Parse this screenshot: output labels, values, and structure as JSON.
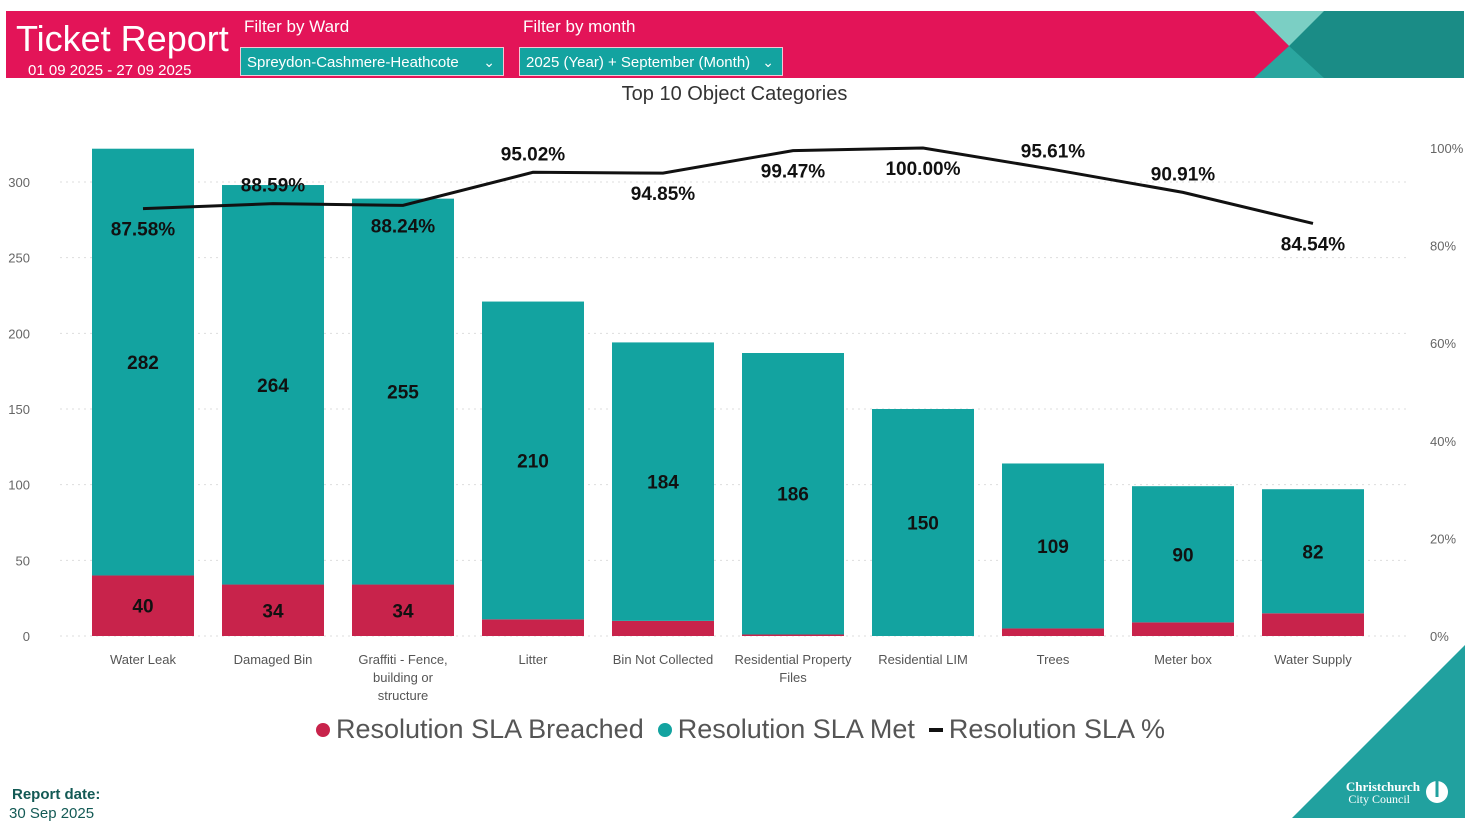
{
  "header": {
    "title": "Ticket Report",
    "date_range": "01 09 2025 - 27 09 2025",
    "ward_filter_label": "Filter by Ward",
    "ward_filter_value": "Spreydon-Cashmere-Heathcote",
    "month_filter_label": "Filter by month",
    "month_filter_value": "2025 (Year) + September (Month)",
    "chevron_icon": "chevron-down-icon"
  },
  "colors": {
    "brand_pink": "#e31458",
    "teal": "#13a3a0",
    "breached": "#c8234b",
    "line": "#111111"
  },
  "chart_data": {
    "type": "bar",
    "stacked": true,
    "title": "Top 10 Object Categories",
    "categories": [
      "Water Leak",
      "Damaged Bin",
      "Graffiti - Fence, building or structure",
      "Litter",
      "Bin Not Collected",
      "Residential Property Files",
      "Residential LIM",
      "Trees",
      "Meter box",
      "Water Supply"
    ],
    "series": [
      {
        "name": "Resolution SLA Breached",
        "type": "bar",
        "axis": "left",
        "values": [
          40,
          34,
          34,
          11,
          10,
          1,
          0,
          5,
          9,
          15
        ],
        "labels": [
          "40",
          "34",
          "34",
          "",
          "",
          "",
          "",
          "",
          "",
          ""
        ]
      },
      {
        "name": "Resolution SLA Met",
        "type": "bar",
        "axis": "left",
        "values": [
          282,
          264,
          255,
          210,
          184,
          186,
          150,
          109,
          90,
          82
        ],
        "labels": [
          "282",
          "264",
          "255",
          "210",
          "184",
          "186",
          "150",
          "109",
          "90",
          "82"
        ]
      },
      {
        "name": "Resolution SLA %",
        "type": "line",
        "axis": "right",
        "values": [
          87.58,
          88.59,
          88.24,
          95.02,
          94.85,
          99.47,
          100.0,
          95.61,
          90.91,
          84.54
        ],
        "labels": [
          "87.58%",
          "88.59%",
          "88.24%",
          "95.02%",
          "94.85%",
          "99.47%",
          "100.00%",
          "95.61%",
          "90.91%",
          "84.54%"
        ]
      }
    ],
    "y_left": {
      "range": [
        0,
        300
      ],
      "ticks": [
        "0",
        "50",
        "100",
        "150",
        "200",
        "250",
        "300"
      ]
    },
    "y_right": {
      "range": [
        0,
        100
      ],
      "ticks": [
        "0%",
        "20%",
        "40%",
        "60%",
        "80%",
        "100%"
      ]
    },
    "grid": true,
    "legend": "bottom"
  },
  "footer": {
    "report_date_label": "Report date:",
    "report_date_value": "30 Sep 2025",
    "logo_line1": "Christchurch",
    "logo_line2": "City Council"
  }
}
